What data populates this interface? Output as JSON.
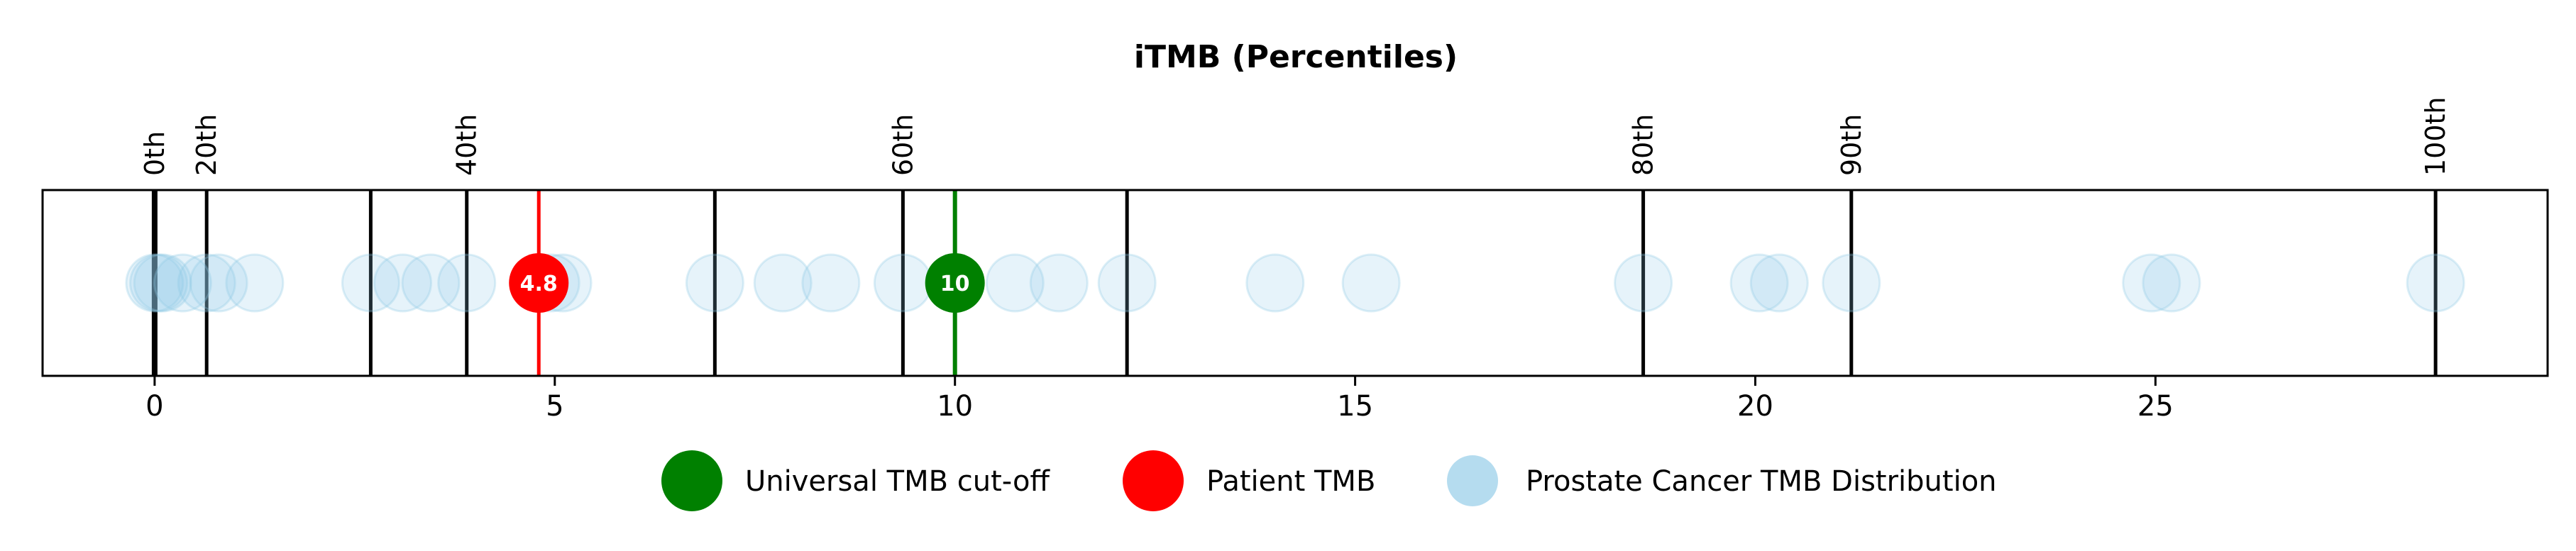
{
  "chart_data": {
    "type": "scatter",
    "title": "iTMB (Percentiles)",
    "xlabel": "",
    "ylabel": "",
    "xlim": [
      -1.4,
      29.9
    ],
    "x_ticks": [
      0,
      5,
      10,
      15,
      20,
      25
    ],
    "x_tick_labels": [
      "0",
      "5",
      "10",
      "15",
      "20",
      "25"
    ],
    "grid": false,
    "legend_position": "bottom-center",
    "percentile_markers": [
      {
        "x": 0.0,
        "label": "0th"
      },
      {
        "x": 0.65,
        "label": "20th"
      },
      {
        "x": 3.9,
        "label": "40th"
      },
      {
        "x": 9.35,
        "label": "60th"
      },
      {
        "x": 18.6,
        "label": "80th"
      },
      {
        "x": 21.2,
        "label": "90th"
      },
      {
        "x": 28.5,
        "label": "100th"
      }
    ],
    "unlabeled_lines": [
      2.7,
      7.0,
      12.15
    ],
    "series": [
      {
        "name": "Universal TMB cut-off",
        "color": "#008000",
        "values": [
          10
        ],
        "label": "10"
      },
      {
        "name": "Patient TMB",
        "color": "#ff0000",
        "values": [
          4.8
        ],
        "label": "4.8"
      },
      {
        "name": "Prostate Cancer TMB Distribution",
        "color": "#8ec9e6",
        "values": [
          0.0,
          0.05,
          0.1,
          0.35,
          0.65,
          0.8,
          1.25,
          2.7,
          3.1,
          3.45,
          3.9,
          4.8,
          4.95,
          5.1,
          7.0,
          7.85,
          8.45,
          9.35,
          10.0,
          10.75,
          11.3,
          12.15,
          14.0,
          15.2,
          18.6,
          20.05,
          20.3,
          21.2,
          24.95,
          25.2,
          28.5
        ]
      }
    ]
  }
}
